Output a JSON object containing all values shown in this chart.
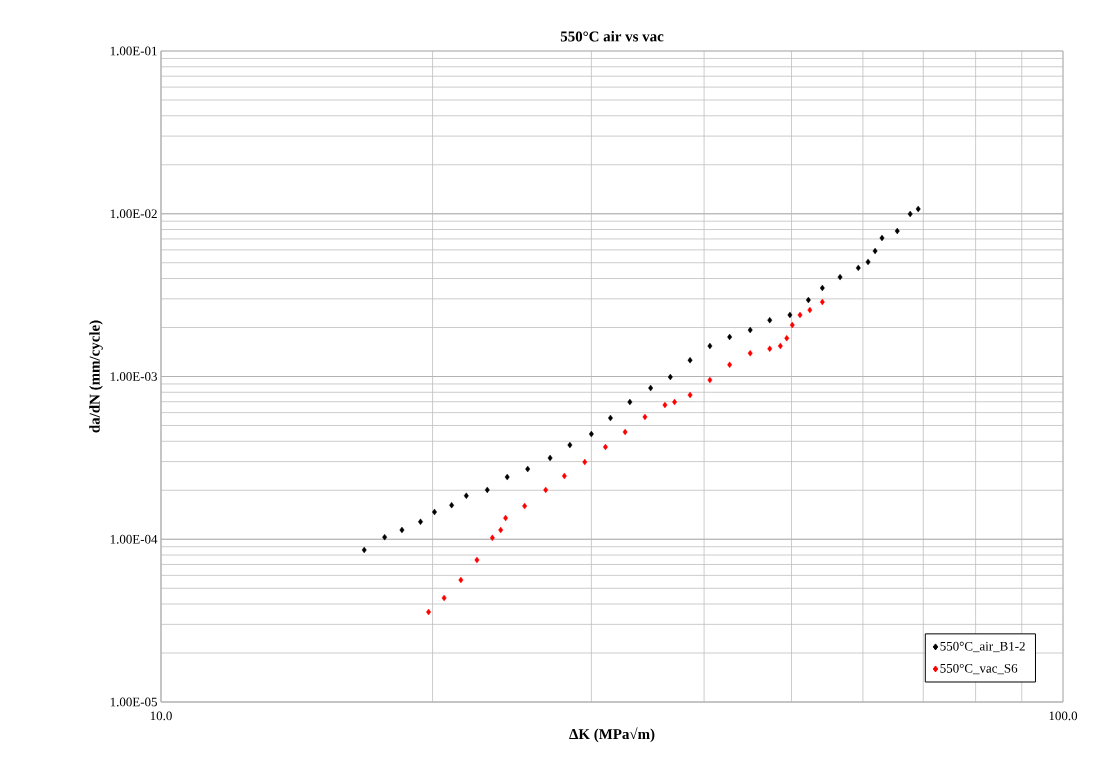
{
  "chart_data": {
    "type": "scatter",
    "title": "550°C air vs vac",
    "xlabel": "ΔK (MPa√m)",
    "ylabel": "da/dN (mm/cycle)",
    "log": "xy",
    "grid": true,
    "legend": "bottom right",
    "marker": "diamond",
    "xlim": [
      10,
      100
    ],
    "xticks": [
      {
        "value": 10,
        "label": "10.0"
      },
      {
        "value": 100,
        "label": "100.0"
      }
    ],
    "ylim": [
      1e-05,
      0.1
    ],
    "yticks": [
      {
        "value": 1e-05,
        "label": "1.00E-05"
      },
      {
        "value": 0.0001,
        "label": "1.00E-04"
      },
      {
        "value": 0.001,
        "label": "1.00E-03"
      },
      {
        "value": 0.01,
        "label": "1.00E-02"
      },
      {
        "value": 0.1,
        "label": "1.00E-01"
      }
    ],
    "series": [
      {
        "name": "550°C_air_B1-2",
        "color": "#000000",
        "x": [
          16.8,
          17.7,
          18.5,
          19.4,
          20.1,
          21.0,
          21.8,
          23.0,
          24.2,
          25.5,
          27.0,
          28.4,
          30.0,
          31.5,
          33.1,
          34.9,
          36.7,
          38.6,
          40.6,
          42.7,
          45.0,
          47.3,
          49.8,
          52.2,
          54.1,
          56.6,
          59.3,
          60.8,
          61.9,
          63.0,
          65.5,
          67.7,
          69.1
        ],
        "values": [
          8.59e-05,
          0.000103,
          0.000114,
          0.000128,
          0.000147,
          0.000162,
          0.000185,
          0.000201,
          0.000241,
          0.00027,
          0.000316,
          0.000379,
          0.000443,
          0.000556,
          0.000697,
          0.000849,
          0.000993,
          0.00126,
          0.00154,
          0.00175,
          0.00193,
          0.00222,
          0.00239,
          0.00295,
          0.0035,
          0.00408,
          0.00465,
          0.00506,
          0.0059,
          0.0071,
          0.00783,
          0.00997,
          0.0107
        ]
      },
      {
        "name": "550°C_vac_S6",
        "color": "#ff0000",
        "x": [
          19.8,
          20.6,
          21.5,
          22.4,
          23.3,
          23.8,
          24.1,
          25.3,
          26.7,
          28.0,
          29.5,
          31.1,
          32.7,
          34.4,
          36.2,
          37.1,
          38.6,
          40.6,
          42.7,
          45.0,
          47.3,
          48.6,
          49.4,
          50.1,
          51.1,
          52.4,
          54.1
        ],
        "values": [
          3.57e-05,
          4.36e-05,
          5.62e-05,
          7.46e-05,
          0.000102,
          0.000114,
          0.000135,
          0.00016,
          0.000201,
          0.000245,
          0.000298,
          0.000369,
          0.000456,
          0.000564,
          0.000668,
          0.000697,
          0.000769,
          0.000951,
          0.00118,
          0.00139,
          0.00148,
          0.00154,
          0.00172,
          0.00207,
          0.00239,
          0.00256,
          0.00287
        ]
      }
    ]
  }
}
